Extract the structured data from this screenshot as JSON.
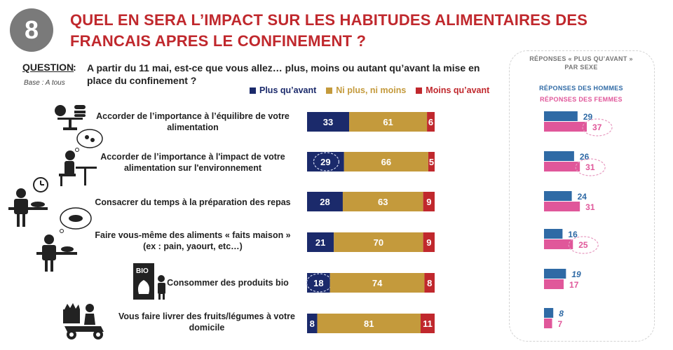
{
  "header": {
    "number": "8",
    "title": "QUEL EN SERA L’IMPACT SUR LES HABITUDES ALIMENTAIRES DES FRANCAIS APRES LE CONFINEMENT ?"
  },
  "question": {
    "label": "QUESTION",
    "colon": ":",
    "base": "Base : A tous",
    "text": "A partir du 11 mai, est-ce que vous allez… plus, moins ou autant qu’avant la mise en place du confinement ?"
  },
  "colors": {
    "plus": "#1b2a6b",
    "neutral": "#c49a3c",
    "moins": "#c0282d",
    "men": "#2f6aa5",
    "women": "#e0579a",
    "title": "#c0282d"
  },
  "side_panel": {
    "title_line1": "RÉPONSES « PLUS QU’AVANT »",
    "title_line2": "PAR SEXE",
    "men_label": "RÉPONSES DES HOMMES",
    "women_label": "RÉPONSES DES FEMMES"
  },
  "rows": [
    {
      "label_line1": "Accorder de l’importance à l’équilibre de votre",
      "label_line2": "alimentation",
      "icon": "scale-food-icon"
    },
    {
      "label_line1": "Accorder de l’importance à l'impact de votre",
      "label_line2": "alimentation sur l'environnement",
      "icon": "person-eating-thinking-icon"
    },
    {
      "label_line1": "Consacrer du temps à la préparation des repas",
      "label_line2": "",
      "icon": "cook-clock-icon"
    },
    {
      "label_line1": "Faire vous-même des aliments « faits maison »",
      "label_line2": "(ex : pain, yaourt, etc…)",
      "icon": "baker-thinking-icon"
    },
    {
      "label_line1": "Consommer des produits bio",
      "label_line2": "",
      "icon": "bio-shop-icon"
    },
    {
      "label_line1": "Vous faire livrer des fruits/légumes à votre",
      "label_line2": "domicile",
      "icon": "delivery-scooter-icon"
    }
  ],
  "chart_data": [
    {
      "type": "bar",
      "orientation": "horizontal-stacked-100",
      "categories": [
        "Accorder de l’importance à l’équilibre de votre alimentation",
        "Accorder de l’importance à l'impact de votre alimentation sur l'environnement",
        "Consacrer du temps à la préparation des repas",
        "Faire vous-même des aliments « faits maison » (ex : pain, yaourt, etc…)",
        "Consommer des produits bio",
        "Vous faire livrer des fruits/légumes à votre domicile"
      ],
      "series": [
        {
          "name": "Plus qu’avant",
          "values": [
            33,
            29,
            28,
            21,
            18,
            8
          ],
          "color": "#1b2a6b"
        },
        {
          "name": "Ni plus, ni moins",
          "values": [
            61,
            66,
            63,
            70,
            74,
            81
          ],
          "color": "#c49a3c"
        },
        {
          "name": "Moins qu’avant",
          "values": [
            6,
            5,
            9,
            9,
            8,
            11
          ],
          "color": "#c0282d"
        }
      ],
      "circled_plus": [
        1,
        4
      ],
      "legend": "top"
    },
    {
      "type": "bar",
      "orientation": "horizontal-grouped",
      "series": [
        {
          "name": "RÉPONSES DES HOMMES",
          "values": [
            29,
            26,
            24,
            16,
            19,
            8
          ],
          "color": "#2f6aa5",
          "italic": [
            false,
            false,
            false,
            false,
            true,
            true
          ]
        },
        {
          "name": "RÉPONSES DES FEMMES",
          "values": [
            37,
            31,
            31,
            25,
            17,
            7
          ],
          "color": "#e0579a",
          "circled": [
            true,
            true,
            false,
            true,
            false,
            false
          ]
        }
      ]
    }
  ]
}
